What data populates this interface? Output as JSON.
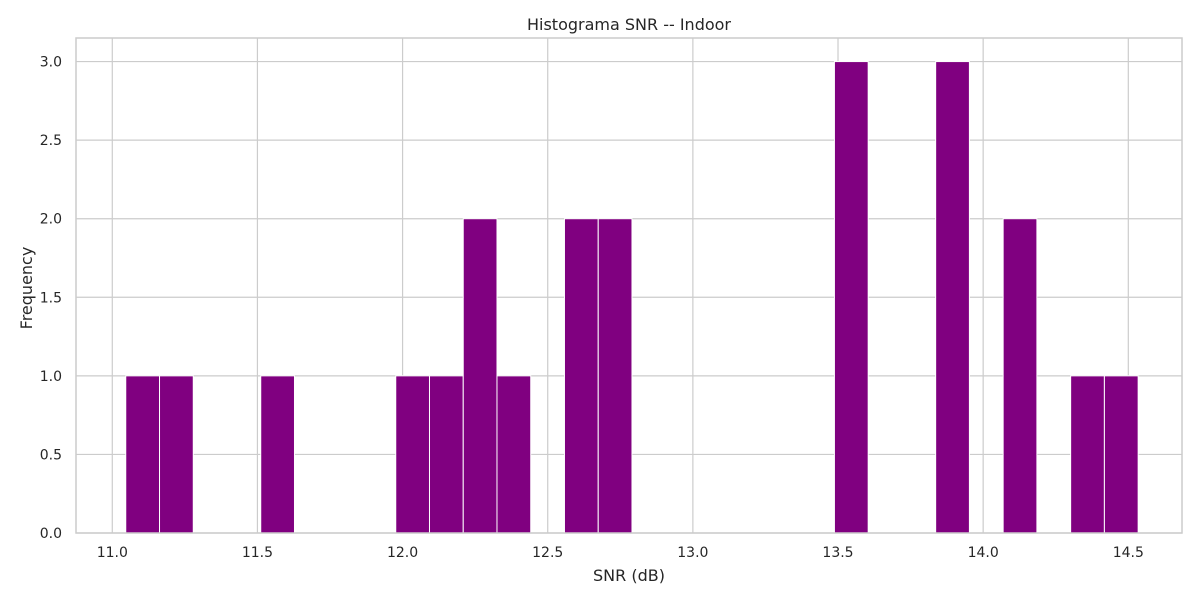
{
  "chart_data": {
    "type": "bar",
    "subtype": "histogram",
    "title": "Histograma SNR -- Indoor",
    "xlabel": "SNR (dB)",
    "ylabel": "Frequency",
    "xlim": [
      10.875,
      14.685
    ],
    "ylim": [
      0,
      3.15
    ],
    "grid": true,
    "bar_color": "#800080",
    "bin_width": 0.11625,
    "bins": [
      {
        "start": 11.0464,
        "count": 1
      },
      {
        "start": 11.1627,
        "count": 1
      },
      {
        "start": 11.5114,
        "count": 1
      },
      {
        "start": 11.9765,
        "count": 1
      },
      {
        "start": 12.0927,
        "count": 1
      },
      {
        "start": 12.209,
        "count": 2
      },
      {
        "start": 12.3252,
        "count": 1
      },
      {
        "start": 12.5577,
        "count": 2
      },
      {
        "start": 12.674,
        "count": 2
      },
      {
        "start": 13.4877,
        "count": 3
      },
      {
        "start": 13.8364,
        "count": 3
      },
      {
        "start": 14.0689,
        "count": 2
      },
      {
        "start": 14.3014,
        "count": 1
      },
      {
        "start": 14.4177,
        "count": 1
      }
    ],
    "x_ticks": [
      {
        "value": 11.0,
        "label": "11.0"
      },
      {
        "value": 11.5,
        "label": "11.5"
      },
      {
        "value": 12.0,
        "label": "12.0"
      },
      {
        "value": 12.5,
        "label": "12.5"
      },
      {
        "value": 13.0,
        "label": "13.0"
      },
      {
        "value": 13.5,
        "label": "13.5"
      },
      {
        "value": 14.0,
        "label": "14.0"
      },
      {
        "value": 14.5,
        "label": "14.5"
      }
    ],
    "y_ticks": [
      {
        "value": 0.0,
        "label": "0.0"
      },
      {
        "value": 0.5,
        "label": "0.5"
      },
      {
        "value": 1.0,
        "label": "1.0"
      },
      {
        "value": 1.5,
        "label": "1.5"
      },
      {
        "value": 2.0,
        "label": "2.0"
      },
      {
        "value": 2.5,
        "label": "2.5"
      },
      {
        "value": 3.0,
        "label": "3.0"
      }
    ]
  }
}
